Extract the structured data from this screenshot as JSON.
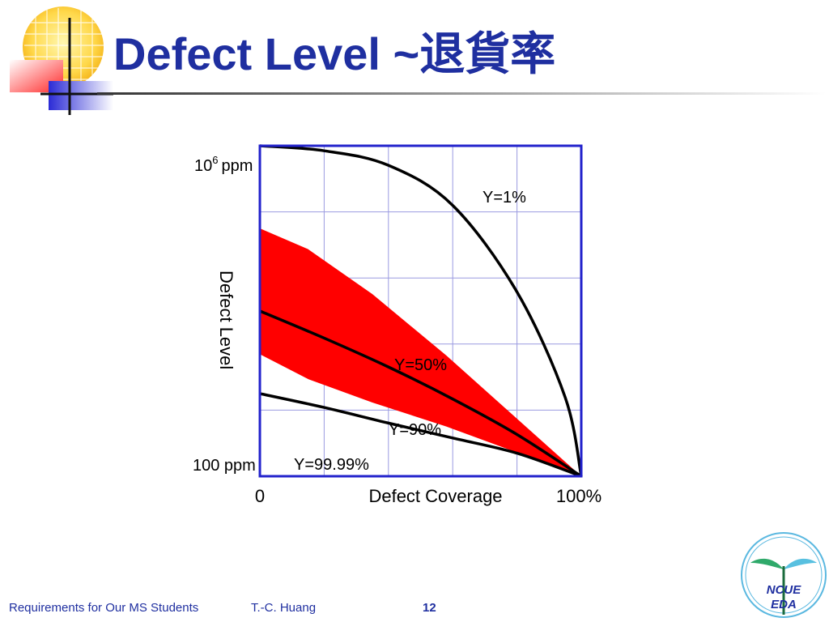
{
  "slide": {
    "title": "Defect Level ~退貨率",
    "footer_left": "Requirements for Our MS Students",
    "footer_author": "T.-C. Huang",
    "page_number": "12",
    "logo_line1": "NCUE",
    "logo_line2": "EDA"
  },
  "chart_data": {
    "type": "line",
    "xlabel": "Defect Coverage",
    "ylabel": "Defect Level",
    "x_tick_labels": [
      "0",
      "100%"
    ],
    "y_top_label_base": "10",
    "y_top_label_sup": "6",
    "y_top_label_unit": "ppm",
    "y_bottom_label": "100 ppm",
    "y_scale": "log",
    "ylim_ppm": [
      100,
      1000000
    ],
    "xlim_percent": [
      0,
      100
    ],
    "grid": true,
    "series": [
      {
        "name": "Y=1%",
        "x": [
          0,
          20,
          40,
          60,
          80,
          95,
          100
        ],
        "y_ppm": [
          1000000,
          870000,
          580000,
          190000,
          17000,
          900,
          100
        ]
      },
      {
        "name": "Y=50%",
        "x": [
          0,
          20,
          40,
          60,
          80,
          100
        ],
        "y_ppm": [
          10000,
          4700,
          2100,
          860,
          320,
          100
        ]
      },
      {
        "name": "Y=90%",
        "x": [
          0,
          20,
          40,
          60,
          80,
          100
        ],
        "y_ppm": [
          1000,
          680,
          440,
          290,
          190,
          100
        ]
      },
      {
        "name": "Y=99.99%",
        "x": [
          0,
          100
        ],
        "y_ppm": [
          100,
          100
        ]
      }
    ],
    "band": {
      "x": [
        0,
        15,
        35,
        58,
        100
      ],
      "y_upper_ppm": [
        100000,
        56000,
        16000,
        2900,
        100
      ],
      "y_lower_ppm": [
        3000,
        1500,
        780,
        400,
        100
      ]
    },
    "colors": {
      "band": "#ff0000",
      "curves": "#000000",
      "y9999_line": "#22cc22",
      "frame": "#2222cc",
      "grid": "#9a9ae0",
      "title": "#1f2fa0"
    }
  }
}
